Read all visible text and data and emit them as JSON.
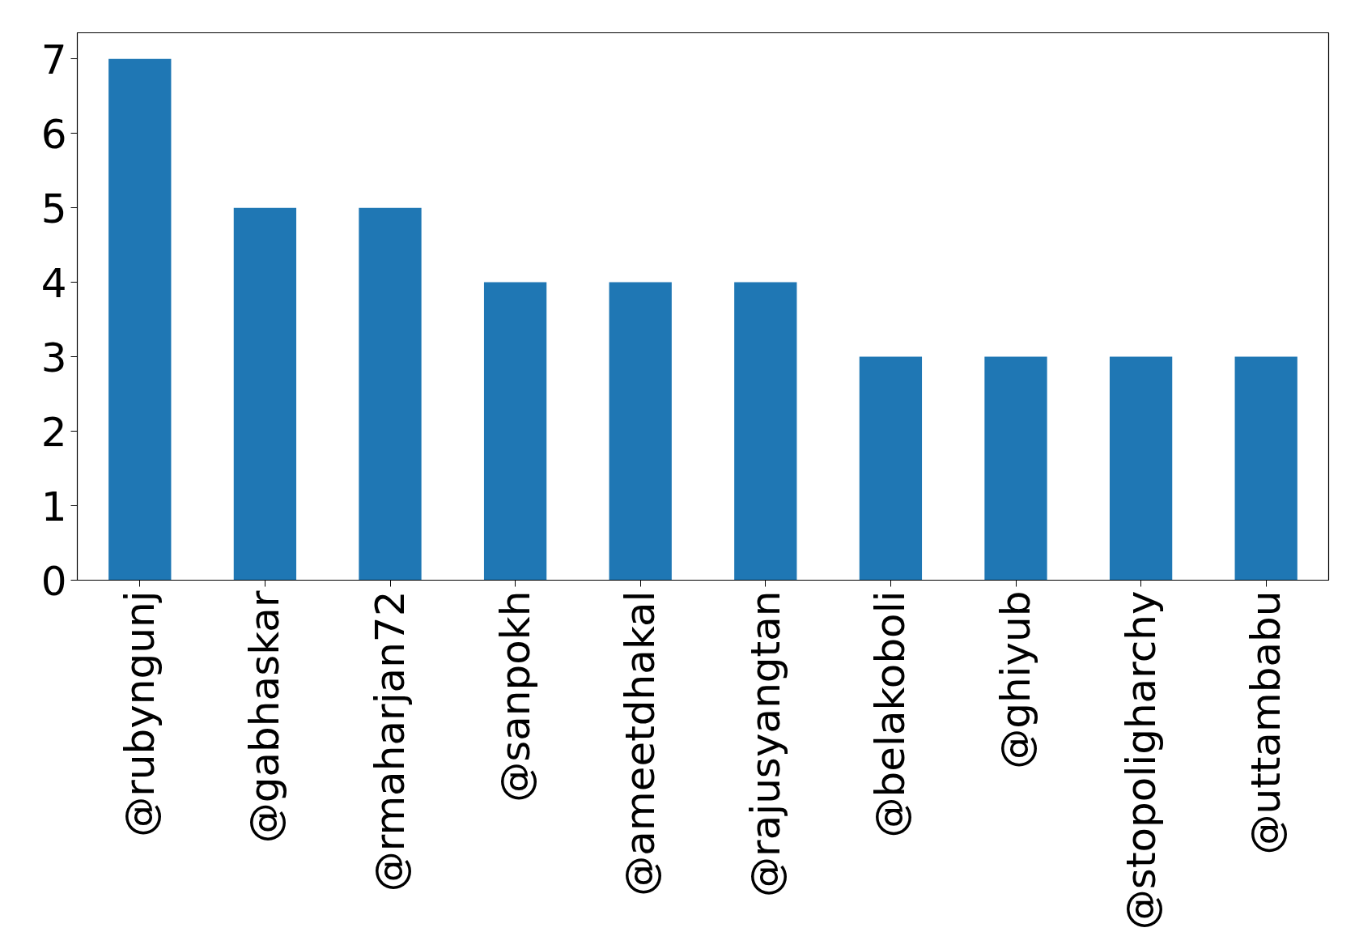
{
  "chart_data": {
    "type": "bar",
    "categories": [
      "@rubyngunj",
      "@gabhaskar",
      "@rmaharjan72",
      "@sanpokh",
      "@ameetdhakal",
      "@rajusyangtan",
      "@belakoboli",
      "@ghiyub",
      "@stopoligharchy",
      "@uttambabu"
    ],
    "values": [
      7,
      5,
      5,
      4,
      4,
      4,
      3,
      3,
      3,
      3
    ],
    "color": "#1f77b4",
    "ylim": [
      0,
      7.35
    ],
    "yticks": [
      0,
      1,
      2,
      3,
      4,
      5,
      6,
      7
    ],
    "grid": false
  }
}
